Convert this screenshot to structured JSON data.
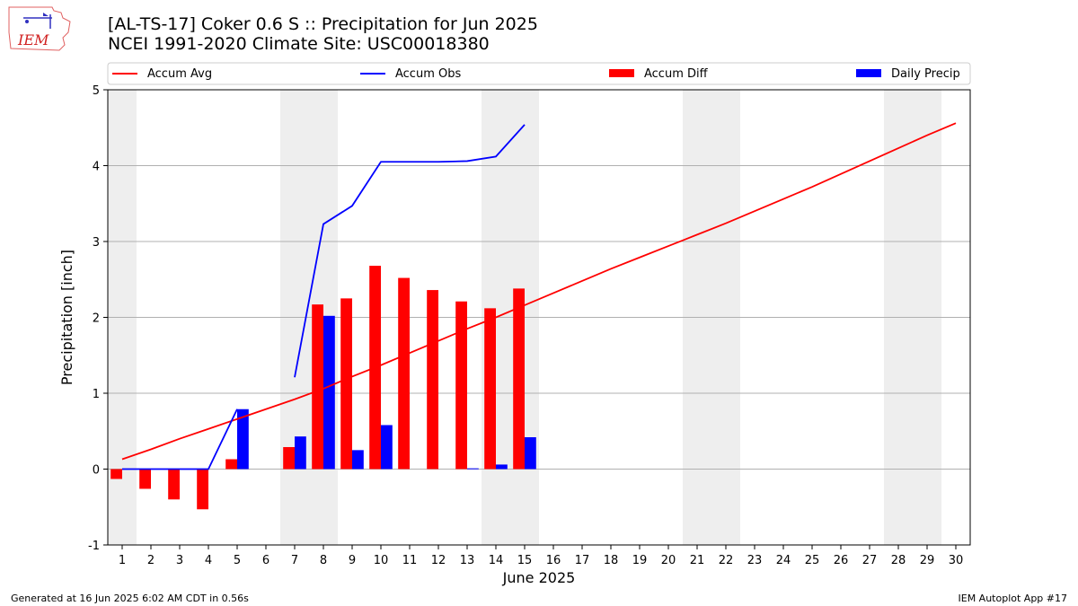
{
  "header": {
    "title_line1": "[AL-TS-17] Coker 0.6 S :: Precipitation for Jun 2025",
    "title_line2": "NCEI 1991-2020 Climate Site: USC00018380"
  },
  "logo": {
    "text": "IEM"
  },
  "footer": {
    "generated": "Generated at 16 Jun 2025 6:02 AM CDT in 0.56s",
    "app": "IEM Autoplot App #17"
  },
  "colors": {
    "avg": "#ff0000",
    "obs": "#0000ff",
    "diff": "#ff0000",
    "precip": "#0000ff",
    "weekend": "#eeeeee",
    "grid": "#b0b0b0"
  },
  "chart_data": {
    "type": "bar",
    "xlabel": "June 2025",
    "ylabel": "Precipitation [inch]",
    "xlim": [
      0.5,
      30.5
    ],
    "ylim": [
      -1.0,
      5.0
    ],
    "yticks": [
      -1,
      0,
      1,
      2,
      3,
      4,
      5
    ],
    "days": [
      1,
      2,
      3,
      4,
      5,
      6,
      7,
      8,
      9,
      10,
      11,
      12,
      13,
      14,
      15,
      16,
      17,
      18,
      19,
      20,
      21,
      22,
      23,
      24,
      25,
      26,
      27,
      28,
      29,
      30
    ],
    "weekend_days": [
      1,
      7,
      8,
      14,
      15,
      21,
      22,
      28,
      29
    ],
    "legend": {
      "placement": "top",
      "entries": [
        "Accum Avg",
        "Accum Obs",
        "Accum Diff",
        "Daily Precip"
      ]
    },
    "series": [
      {
        "name": "Accum Avg",
        "type": "line",
        "x": [
          1,
          2,
          3,
          4,
          5,
          6,
          7,
          8,
          9,
          10,
          11,
          12,
          13,
          14,
          15,
          16,
          17,
          18,
          19,
          20,
          21,
          22,
          23,
          24,
          25,
          26,
          27,
          28,
          29,
          30
        ],
        "values": [
          0.13,
          0.26,
          0.4,
          0.53,
          0.66,
          0.79,
          0.92,
          1.06,
          1.22,
          1.37,
          1.53,
          1.69,
          1.85,
          2.0,
          2.16,
          2.32,
          2.48,
          2.64,
          2.79,
          2.94,
          3.09,
          3.24,
          3.4,
          3.56,
          3.72,
          3.89,
          4.06,
          4.23,
          4.4,
          4.56
        ]
      },
      {
        "name": "Accum Obs",
        "type": "line",
        "x": [
          1,
          2,
          3,
          4,
          5,
          7,
          8,
          9,
          10,
          11,
          12,
          13,
          14,
          15
        ],
        "values": [
          0.0,
          0.0,
          0.0,
          0.0,
          0.79,
          1.21,
          3.23,
          3.47,
          4.05,
          4.05,
          4.05,
          4.06,
          4.12,
          4.54
        ]
      },
      {
        "name": "Accum Diff",
        "type": "bar",
        "x": [
          1,
          2,
          3,
          4,
          5,
          7,
          8,
          9,
          10,
          11,
          12,
          13,
          14,
          15
        ],
        "values": [
          -0.13,
          -0.26,
          -0.4,
          -0.53,
          0.13,
          0.29,
          2.17,
          2.25,
          2.68,
          2.52,
          2.36,
          2.21,
          2.12,
          2.38
        ]
      },
      {
        "name": "Daily Precip",
        "type": "bar",
        "x": [
          5,
          7,
          8,
          9,
          10,
          13,
          14,
          15
        ],
        "values": [
          0.79,
          0.43,
          2.02,
          0.25,
          0.58,
          0.01,
          0.06,
          0.42
        ]
      }
    ]
  }
}
